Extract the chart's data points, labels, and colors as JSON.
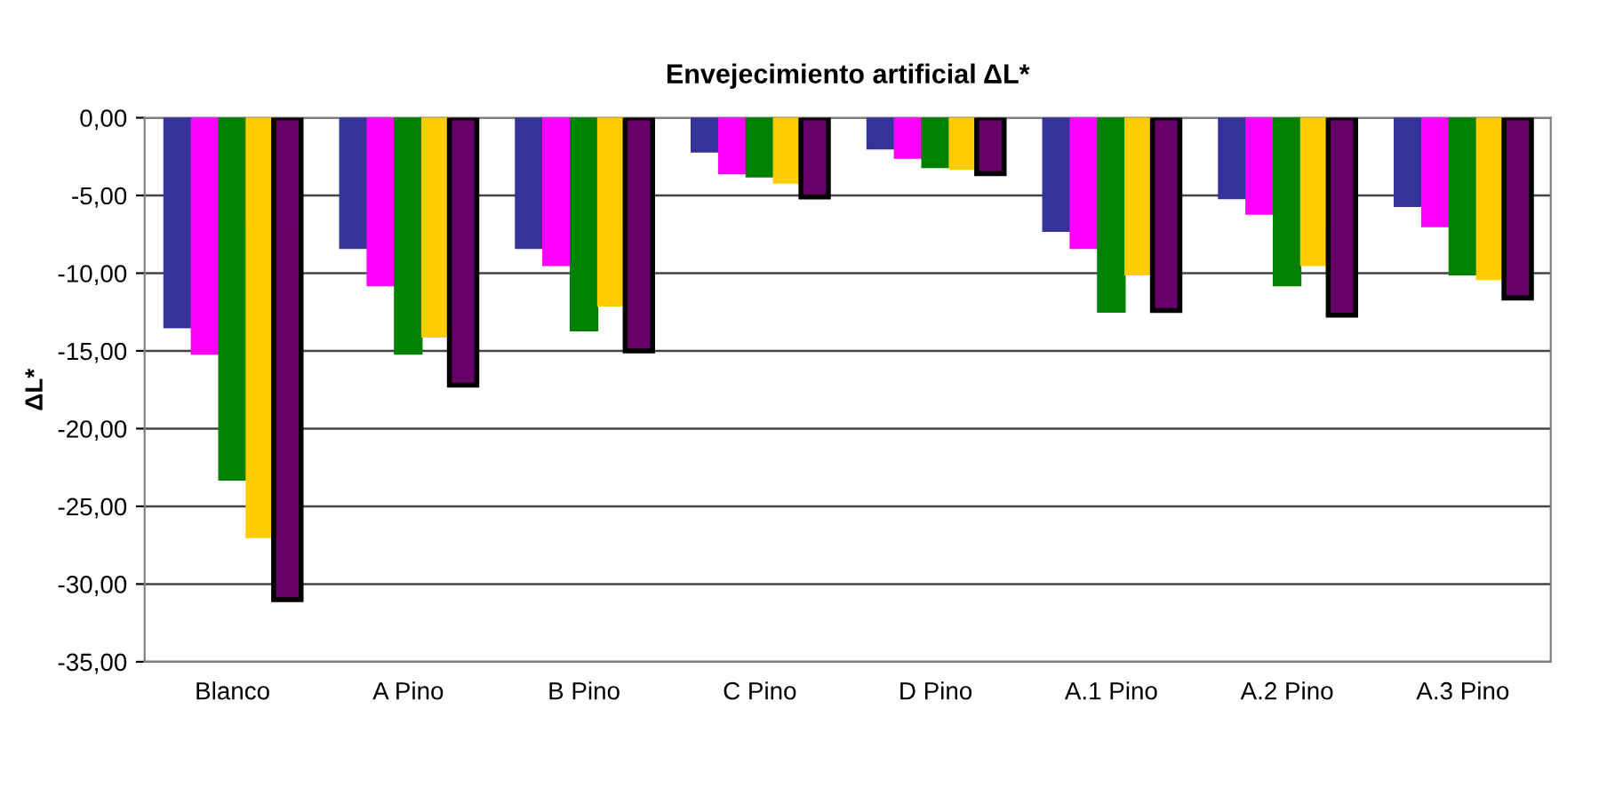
{
  "chart_data": {
    "type": "bar",
    "title": "Envejecimiento artificial ΔL*",
    "ylabel": "ΔL*",
    "categories": [
      "Blanco",
      "A Pino",
      "B Pino",
      "C Pino",
      "D Pino",
      "A.1 Pino",
      "A.2 Pino",
      "A.3 Pino"
    ],
    "series": [
      {
        "color": "#333399",
        "values": [
          -13.5,
          -8.4,
          -8.4,
          -2.2,
          -2.0,
          -7.3,
          -5.2,
          -5.7
        ]
      },
      {
        "color": "#ff00ff",
        "values": [
          -15.2,
          -10.8,
          -9.5,
          -3.6,
          -2.6,
          -8.4,
          -6.2,
          -7.0
        ]
      },
      {
        "color": "#008000",
        "values": [
          -23.3,
          -15.2,
          -13.7,
          -3.8,
          -3.2,
          -12.5,
          -10.8,
          -10.1
        ]
      },
      {
        "color": "#ffcc00",
        "values": [
          -27.0,
          -14.1,
          -12.1,
          -4.2,
          -3.3,
          -10.1,
          -9.5,
          -10.4
        ]
      },
      {
        "color": "#660066",
        "values": [
          -31.0,
          -17.2,
          -15.0,
          -5.1,
          -3.6,
          -12.4,
          -12.7,
          -11.6
        ]
      }
    ],
    "ylim": [
      -35,
      0
    ],
    "yticks": [
      {
        "value": -35,
        "label": "-35,00"
      },
      {
        "value": -30,
        "label": "-30,00"
      },
      {
        "value": -25,
        "label": "-25,00"
      },
      {
        "value": -20,
        "label": "-20,00"
      },
      {
        "value": -15,
        "label": "-15,00"
      },
      {
        "value": -10,
        "label": "-10,00"
      },
      {
        "value": -5,
        "label": "-5,00"
      },
      {
        "value": 0,
        "label": "0,00"
      }
    ],
    "grid": "y",
    "legend": false
  }
}
